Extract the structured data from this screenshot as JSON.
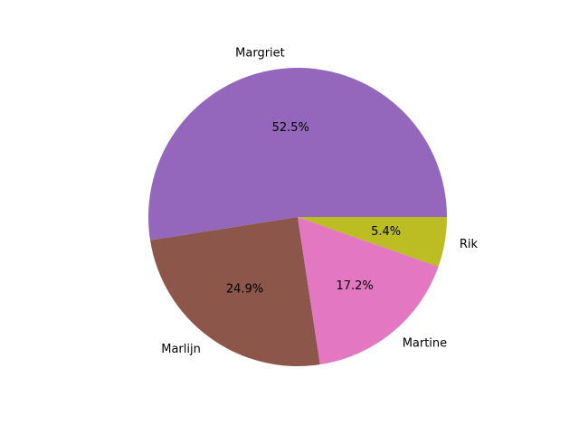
{
  "chart_data": {
    "type": "pie",
    "title": "",
    "labels": [
      "Margriet",
      "Marlijn",
      "Martine",
      "Rik"
    ],
    "values": [
      52.5,
      24.9,
      17.2,
      5.4
    ],
    "value_labels": [
      "52.5%",
      "24.9%",
      "17.2%",
      "5.4%"
    ],
    "colors": [
      "#9467bd",
      "#8c564b",
      "#e377c2",
      "#bcbd22"
    ],
    "start_angle_deg": 0,
    "direction": "counterclockwise",
    "legend": "none"
  }
}
